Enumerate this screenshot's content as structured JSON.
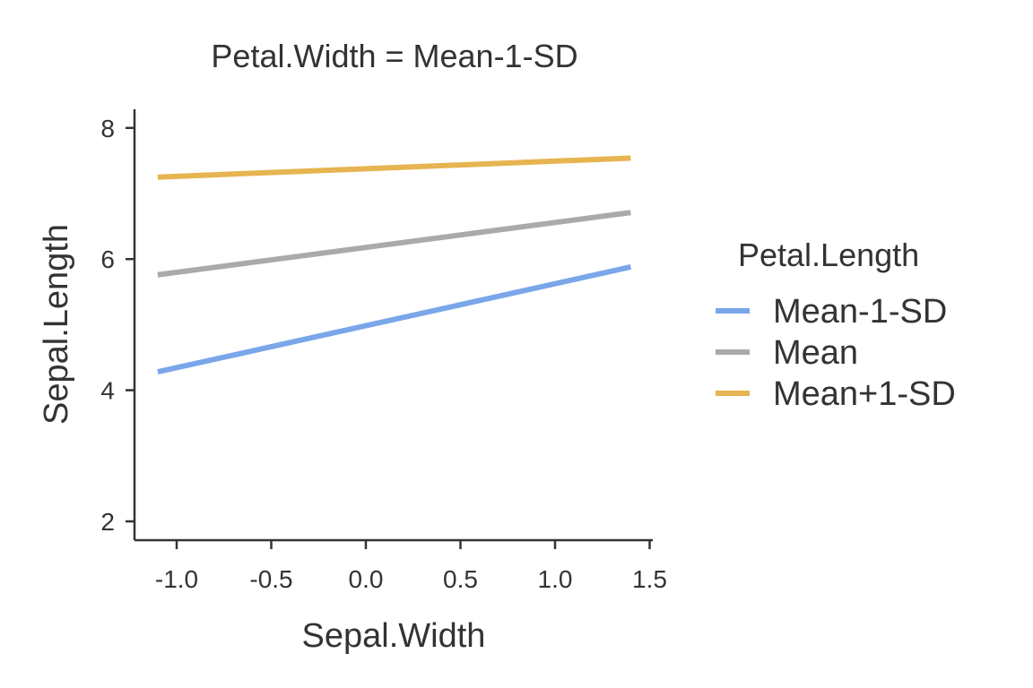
{
  "chart_data": {
    "type": "line",
    "title": "Petal.Width = Mean-1-SD",
    "xlabel": "Sepal.Width",
    "ylabel": "Sepal.Length",
    "xlim": [
      -1.1,
      1.4
    ],
    "ylim": [
      2,
      8
    ],
    "x_ticks": [
      -1.0,
      -0.5,
      0.0,
      0.5,
      1.0,
      1.5
    ],
    "x_tick_labels": [
      "-1.0",
      "-0.5",
      "0.0",
      "0.5",
      "1.0",
      "1.5"
    ],
    "y_ticks": [
      2,
      4,
      6,
      8
    ],
    "y_tick_labels": [
      "2",
      "4",
      "6",
      "8"
    ],
    "grid": false,
    "legend": {
      "title": "Petal.Length",
      "placement": "right"
    },
    "x": [
      -1.1,
      1.4
    ],
    "series": [
      {
        "name": "Mean-1-SD",
        "color": "#7aa6ea",
        "values": [
          4.28,
          5.88
        ]
      },
      {
        "name": "Mean",
        "color": "#aaaaaa",
        "values": [
          5.76,
          6.71
        ]
      },
      {
        "name": "Mean+1-SD",
        "color": "#e6b450",
        "values": [
          7.25,
          7.54
        ]
      }
    ]
  }
}
